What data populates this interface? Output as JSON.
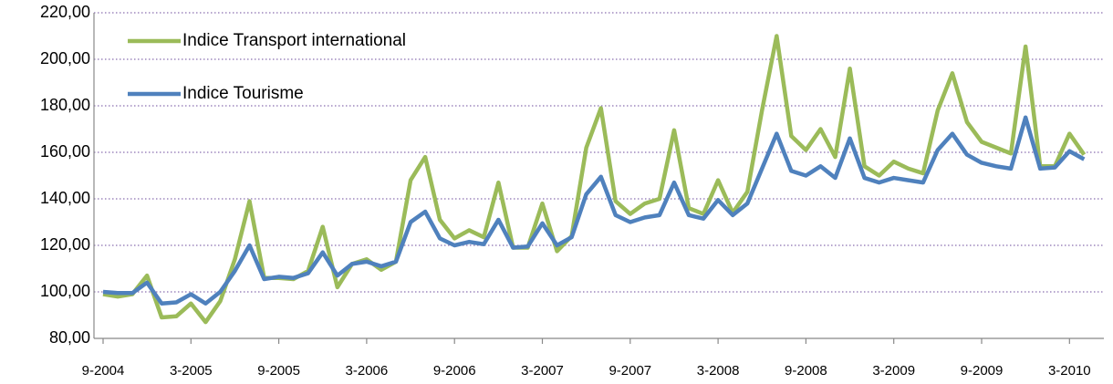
{
  "chart_data": {
    "type": "line",
    "categories": [
      "9-2004",
      null,
      null,
      null,
      null,
      null,
      "3-2005",
      null,
      null,
      null,
      null,
      null,
      "9-2005",
      null,
      null,
      null,
      null,
      null,
      "3-2006",
      null,
      null,
      null,
      null,
      null,
      "9-2006",
      null,
      null,
      null,
      null,
      null,
      "3-2007",
      null,
      null,
      null,
      null,
      null,
      "9-2007",
      null,
      null,
      null,
      null,
      null,
      "3-2008",
      null,
      null,
      null,
      null,
      null,
      "9-2008",
      null,
      null,
      null,
      null,
      null,
      "3-2009",
      null,
      null,
      null,
      null,
      null,
      "9-2009",
      null,
      null,
      null,
      null,
      null,
      "3-2010",
      null
    ],
    "series": [
      {
        "name": "Indice Transport international",
        "color": "#9bbb59",
        "values": [
          99,
          98,
          99,
          107,
          89,
          89.5,
          95,
          87,
          96,
          114,
          139,
          106,
          106,
          105.5,
          109,
          128,
          102,
          112,
          114,
          109.5,
          113,
          148,
          158,
          131,
          123,
          126.5,
          123.5,
          147,
          119,
          119,
          138,
          117.5,
          124,
          162,
          179,
          139,
          133.5,
          138,
          140,
          169.5,
          136,
          133.5,
          148,
          134,
          143,
          178,
          210,
          167,
          161,
          170,
          158,
          196,
          154,
          150,
          156,
          153,
          151,
          178,
          194,
          173,
          164.5,
          162,
          159.5,
          205.5,
          154,
          154,
          168,
          159
        ]
      },
      {
        "name": "Indice Tourisme",
        "color": "#4f81bd",
        "values": [
          100,
          99.5,
          99.5,
          104,
          95,
          95.5,
          99,
          95,
          100,
          109,
          120,
          105.5,
          106.5,
          106,
          108,
          117,
          107,
          112,
          113,
          111,
          113,
          130,
          134.5,
          123,
          120,
          121.5,
          120.5,
          131,
          119,
          119.5,
          129.5,
          120,
          123.5,
          142,
          149.5,
          133,
          130,
          132,
          133,
          147,
          133,
          131.5,
          139.5,
          133,
          138,
          153,
          168,
          152,
          150,
          154,
          149,
          166,
          149,
          147,
          149,
          148,
          147,
          161,
          168,
          159,
          155.5,
          154,
          153,
          175,
          153,
          153.5,
          160.5,
          157
        ]
      }
    ],
    "ylim": [
      80,
      220
    ],
    "yticks": [
      {
        "value": 80,
        "label": "80,00"
      },
      {
        "value": 100,
        "label": "100,00"
      },
      {
        "value": 120,
        "label": "120,00"
      },
      {
        "value": 140,
        "label": "140,00"
      },
      {
        "value": 160,
        "label": "160,00"
      },
      {
        "value": 180,
        "label": "180,00"
      },
      {
        "value": 200,
        "label": "200,00"
      },
      {
        "value": 220,
        "label": "220,00"
      }
    ],
    "grid": true,
    "legend": "upper left"
  }
}
